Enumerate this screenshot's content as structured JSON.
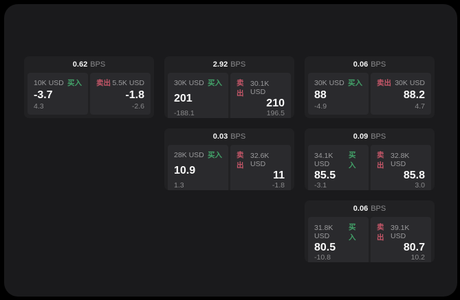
{
  "page": {
    "background": "#000000",
    "surface_color": "#1a1a1c"
  },
  "colors": {
    "buy_accent": "#42a068",
    "sell_accent": "#c45668",
    "card_bg": "#212123",
    "tile_bg": "#2a2a2d",
    "price_text": "#fafafa",
    "muted_text": "#9b9b9d"
  },
  "cards": [
    {
      "row": 1,
      "col": 1,
      "bps_value": "0.62",
      "bps_unit": "BPS",
      "buy": {
        "size": "10K USD",
        "label": "买入",
        "price": "-3.7",
        "delta": "4.3"
      },
      "sell": {
        "label": "卖出",
        "size": "5.5K USD",
        "price": "-1.8",
        "delta": "-2.6"
      }
    },
    {
      "row": 1,
      "col": 2,
      "bps_value": "2.92",
      "bps_unit": "BPS",
      "buy": {
        "size": "30K USD",
        "label": "买入",
        "price": "201",
        "delta": "-188.1"
      },
      "sell": {
        "label": "卖出",
        "size": "30.1K USD",
        "price": "210",
        "delta": "196.5"
      }
    },
    {
      "row": 1,
      "col": 3,
      "bps_value": "0.06",
      "bps_unit": "BPS",
      "buy": {
        "size": "30K USD",
        "label": "买入",
        "price": "88",
        "delta": "-4.9"
      },
      "sell": {
        "label": "卖出",
        "size": "30K USD",
        "price": "88.2",
        "delta": "4.7"
      }
    },
    {
      "row": 2,
      "col": 2,
      "bps_value": "0.03",
      "bps_unit": "BPS",
      "buy": {
        "size": "28K USD",
        "label": "买入",
        "price": "10.9",
        "delta": "1.3"
      },
      "sell": {
        "label": "卖出",
        "size": "32.6K USD",
        "price": "11",
        "delta": "-1.8"
      }
    },
    {
      "row": 2,
      "col": 3,
      "bps_value": "0.09",
      "bps_unit": "BPS",
      "buy": {
        "size": "34.1K USD",
        "label": "买入",
        "price": "85.5",
        "delta": "-3.1"
      },
      "sell": {
        "label": "卖出",
        "size": "32.8K USD",
        "price": "85.8",
        "delta": "3.0"
      }
    },
    {
      "row": 3,
      "col": 3,
      "bps_value": "0.06",
      "bps_unit": "BPS",
      "buy": {
        "size": "31.8K USD",
        "label": "买入",
        "price": "80.5",
        "delta": "-10.8"
      },
      "sell": {
        "label": "卖出",
        "size": "39.1K USD",
        "price": "80.7",
        "delta": "10.2"
      }
    }
  ]
}
